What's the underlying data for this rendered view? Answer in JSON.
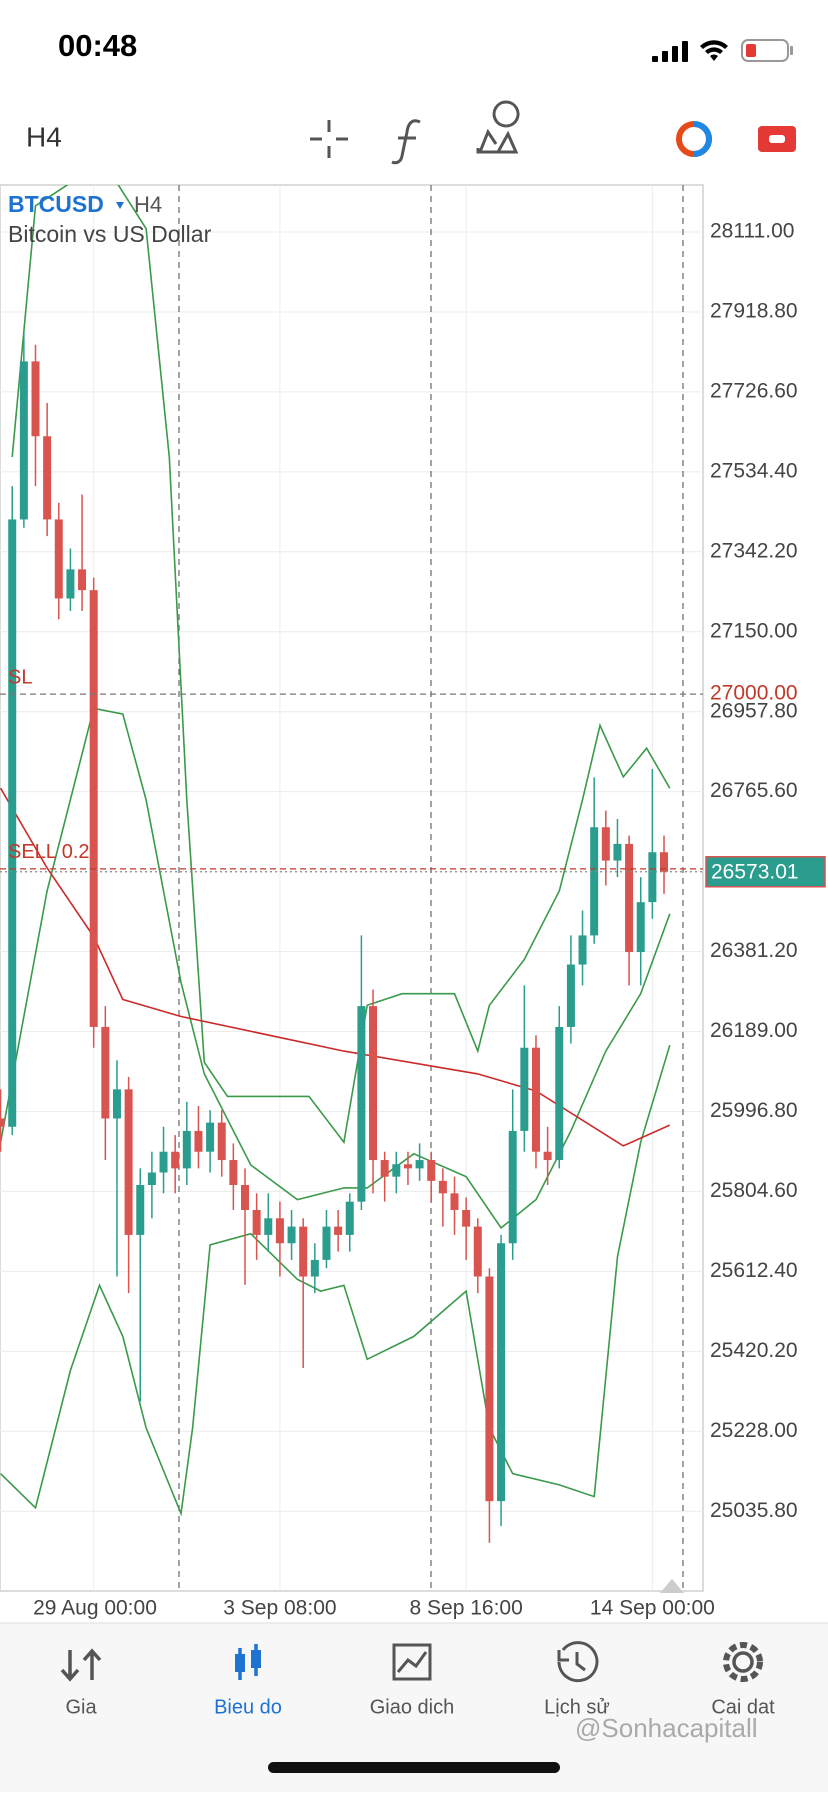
{
  "status": {
    "time": "00:48"
  },
  "toolbar": {
    "timeframe": "H4"
  },
  "header": {
    "symbol": "BTCUSD",
    "timeframe": "H4",
    "description": "Bitcoin vs US Dollar"
  },
  "nav": {
    "items": [
      "Gia",
      "Bieu do",
      "Giao dich",
      "Lịch sử",
      "Cai dat"
    ],
    "active": 1
  },
  "watermark": "@Sonhacapitall",
  "chart_data": {
    "type": "candlestick",
    "xlim": [
      -16.1,
      104.7
    ],
    "ylim": [
      24844,
      28224
    ],
    "grid": true,
    "up_color": "#2a9d8f",
    "down_color": "#d9534f",
    "xticks": [
      {
        "value": 0,
        "label": "29 Aug 00:00"
      },
      {
        "value": 32,
        "label": "3 Sep 08:00"
      },
      {
        "value": 64,
        "label": "8 Sep 16:00"
      },
      {
        "value": 96,
        "label": "14 Sep 00:00"
      }
    ],
    "yticks": [
      {
        "value": 28111,
        "label": "28111.00"
      },
      {
        "value": 27918.8,
        "label": "27918.80"
      },
      {
        "value": 27726.6,
        "label": "27726.60"
      },
      {
        "value": 27534.4,
        "label": "27534.40"
      },
      {
        "value": 27342.2,
        "label": "27342.20"
      },
      {
        "value": 27150,
        "label": "27150.00"
      },
      {
        "value": 26957.8,
        "label": "26957.80"
      },
      {
        "value": 26765.6,
        "label": "26765.60"
      },
      {
        "value": 26381.2,
        "label": "26381.20"
      },
      {
        "value": 26189,
        "label": "26189.00"
      },
      {
        "value": 25996.8,
        "label": "25996.80"
      },
      {
        "value": 25804.6,
        "label": "25804.60"
      },
      {
        "value": 25612.4,
        "label": "25612.40"
      },
      {
        "value": 25420.2,
        "label": "25420.20"
      },
      {
        "value": 25228,
        "label": "25228.00"
      },
      {
        "value": 25035.8,
        "label": "25035.80"
      }
    ],
    "x": [
      -16,
      -14,
      -12,
      -10,
      -8,
      -6,
      -4,
      -2,
      0,
      2,
      4,
      6,
      8,
      10,
      12,
      14,
      16,
      18,
      20,
      22,
      24,
      26,
      28,
      30,
      32,
      34,
      36,
      38,
      40,
      42,
      44,
      46,
      48,
      50,
      52,
      54,
      56,
      58,
      60,
      62,
      64,
      66,
      68,
      70,
      72,
      74,
      76,
      78,
      80,
      82,
      84,
      86,
      88,
      90,
      92,
      94,
      96,
      98
    ],
    "ohlc": [
      [
        25980,
        26050,
        25900,
        25960
      ],
      [
        25960,
        27500,
        25940,
        27420
      ],
      [
        27420,
        27870,
        27400,
        27800
      ],
      [
        27800,
        27840,
        27500,
        27620
      ],
      [
        27620,
        27700,
        27380,
        27420
      ],
      [
        27420,
        27460,
        27180,
        27230
      ],
      [
        27230,
        27350,
        27200,
        27300
      ],
      [
        27300,
        27480,
        27200,
        27250
      ],
      [
        27250,
        27280,
        26150,
        26200
      ],
      [
        26200,
        26250,
        25880,
        25980
      ],
      [
        25980,
        26120,
        25600,
        26050
      ],
      [
        26050,
        26080,
        25560,
        25700
      ],
      [
        25700,
        25860,
        25300,
        25820
      ],
      [
        25820,
        25900,
        25740,
        25850
      ],
      [
        25850,
        25960,
        25800,
        25900
      ],
      [
        25900,
        25940,
        25800,
        25860
      ],
      [
        25860,
        26020,
        25820,
        25950
      ],
      [
        25950,
        26010,
        25860,
        25900
      ],
      [
        25900,
        26000,
        25850,
        25970
      ],
      [
        25970,
        26000,
        25840,
        25880
      ],
      [
        25880,
        25920,
        25760,
        25820
      ],
      [
        25820,
        25860,
        25580,
        25760
      ],
      [
        25760,
        25800,
        25640,
        25700
      ],
      [
        25700,
        25800,
        25660,
        25740
      ],
      [
        25740,
        25780,
        25600,
        25680
      ],
      [
        25680,
        25760,
        25640,
        25720
      ],
      [
        25720,
        25740,
        25380,
        25600
      ],
      [
        25600,
        25680,
        25560,
        25640
      ],
      [
        25640,
        25760,
        25620,
        25720
      ],
      [
        25720,
        25760,
        25660,
        25700
      ],
      [
        25700,
        25800,
        25660,
        25780
      ],
      [
        25780,
        26420,
        25760,
        26250
      ],
      [
        26250,
        26290,
        25800,
        25880
      ],
      [
        25880,
        25900,
        25780,
        25840
      ],
      [
        25840,
        25900,
        25800,
        25870
      ],
      [
        25870,
        25900,
        25820,
        25860
      ],
      [
        25860,
        25920,
        25830,
        25880
      ],
      [
        25880,
        25900,
        25780,
        25830
      ],
      [
        25830,
        25860,
        25720,
        25800
      ],
      [
        25800,
        25840,
        25700,
        25760
      ],
      [
        25760,
        25790,
        25640,
        25720
      ],
      [
        25720,
        25740,
        25560,
        25600
      ],
      [
        25600,
        25620,
        24960,
        25060
      ],
      [
        25060,
        25700,
        25000,
        25680
      ],
      [
        25680,
        26050,
        25640,
        25950
      ],
      [
        25950,
        26300,
        25900,
        26150
      ],
      [
        26150,
        26180,
        25860,
        25900
      ],
      [
        25900,
        25960,
        25820,
        25880
      ],
      [
        25880,
        26250,
        25860,
        26200
      ],
      [
        26200,
        26420,
        26160,
        26350
      ],
      [
        26350,
        26480,
        26300,
        26420
      ],
      [
        26420,
        26800,
        26400,
        26680
      ],
      [
        26680,
        26720,
        26540,
        26600
      ],
      [
        26600,
        26700,
        26560,
        26640
      ],
      [
        26640,
        26660,
        26300,
        26380
      ],
      [
        26380,
        26560,
        26300,
        26500
      ],
      [
        26500,
        26820,
        26460,
        26620
      ],
      [
        26620,
        26660,
        26520,
        26573.01
      ]
    ],
    "lines": [
      {
        "color": "#3a9a4a",
        "x": [
          -14,
          -10,
          -4,
          4,
          9,
          13,
          16,
          19,
          23,
          31,
          37,
          43,
          47,
          53,
          62,
          66,
          68,
          74,
          80,
          84,
          87,
          91,
          95,
          99
        ],
        "values": [
          27570,
          28174,
          28229,
          28229,
          28119,
          27570,
          26746,
          26115,
          26033,
          26033,
          26033,
          25923,
          26252,
          26280,
          26280,
          26142,
          26252,
          26362,
          26527,
          26746,
          26925,
          26801,
          26870,
          26774
        ]
      },
      {
        "color": "#3a9a4a",
        "x": [
          -16,
          -8,
          0,
          5,
          9,
          15,
          19,
          27,
          35,
          43,
          47,
          55,
          64,
          70,
          76,
          82,
          88,
          94,
          99
        ],
        "values": [
          25923,
          26527,
          26966,
          26952,
          26746,
          26307,
          26087,
          25868,
          25785,
          25813,
          25813,
          25895,
          25840,
          25717,
          25785,
          25950,
          26142,
          26280,
          26472
        ]
      },
      {
        "color": "#3a9a4a",
        "x": [
          -16,
          -10,
          -4,
          1,
          5,
          9,
          15,
          17,
          20,
          27,
          35,
          39,
          43,
          47,
          55,
          64,
          68,
          72,
          80,
          86,
          90,
          94,
          99
        ],
        "values": [
          25126,
          25044,
          25374,
          25579,
          25456,
          25236,
          25030,
          25236,
          25676,
          25703,
          25593,
          25565,
          25579,
          25401,
          25456,
          25565,
          25236,
          25126,
          25099,
          25071,
          25648,
          25923,
          26156
        ]
      },
      {
        "color": "#cc2a2a",
        "x": [
          -16,
          -8,
          0,
          5,
          15,
          43,
          66,
          76,
          91,
          99
        ],
        "values": [
          26774,
          26582,
          26417,
          26266,
          26225,
          26142,
          26087,
          26046,
          25914,
          25964
        ]
      }
    ],
    "levels": [
      {
        "label": "SL",
        "value": 27000,
        "value_label": "27000.00",
        "color": "#c0392b"
      },
      {
        "label": "SELL 0.2",
        "value": 26580,
        "color": "#c0392b"
      }
    ],
    "last": 26573.01
  }
}
